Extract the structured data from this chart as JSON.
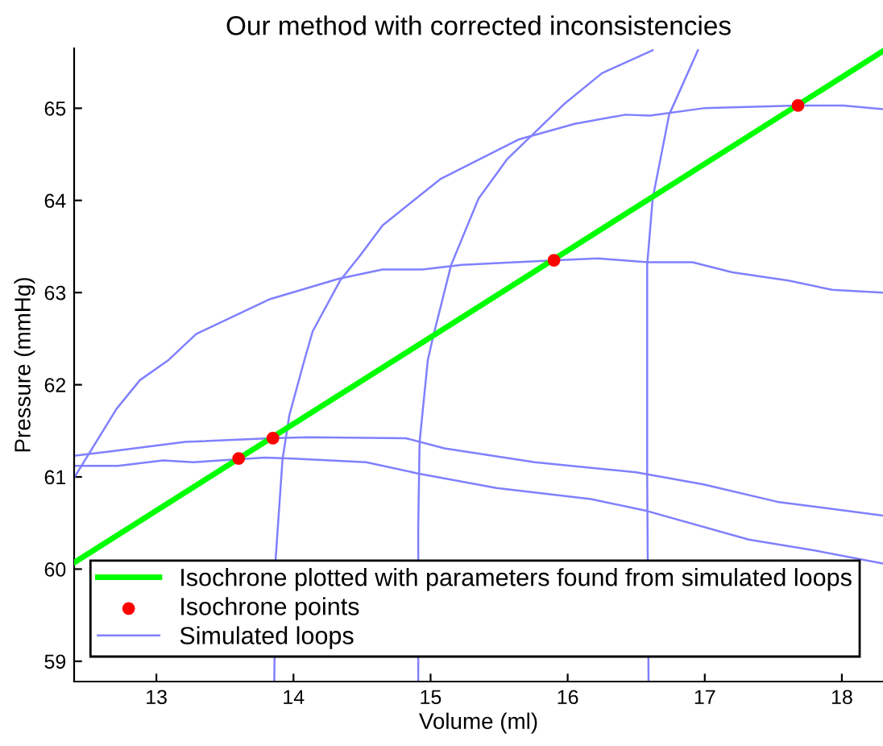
{
  "chart_data": {
    "type": "line",
    "title": "Our method with corrected inconsistencies",
    "xlabel": "Volume (ml)",
    "ylabel": "Pressure (mmHg)",
    "xlim": [
      12.4,
      18.3
    ],
    "ylim": [
      58.78,
      65.65
    ],
    "xticks": [
      13,
      14,
      15,
      16,
      17,
      18
    ],
    "yticks": [
      59,
      60,
      61,
      62,
      63,
      64,
      65
    ],
    "grid": false,
    "legend": "bottom",
    "series": [
      {
        "name": "Isochrone plotted with parameters found from simulated loops",
        "color": "#00ff00",
        "x": [
          12.4,
          18.3
        ],
        "values": [
          60.07,
          65.62
        ]
      },
      {
        "name": "Isochrone points",
        "type": "scatter",
        "color": "#ff0000",
        "marker": "circle",
        "x": [
          13.6,
          13.85,
          15.9,
          17.68
        ],
        "values": [
          61.2,
          61.42,
          63.35,
          65.03
        ]
      },
      {
        "name": "Simulated loops",
        "type": "line",
        "color": "#8080ff",
        "x": [
          12.4,
          12.71,
          12.88,
          13.09,
          13.29,
          13.83,
          14.33,
          14.65,
          14.94,
          15.23,
          15.89,
          16.22,
          16.58,
          16.91,
          17.2,
          17.61,
          17.93,
          18.3
        ],
        "values": [
          60.99,
          61.74,
          62.05,
          62.27,
          62.55,
          62.93,
          63.15,
          63.25,
          63.25,
          63.3,
          63.35,
          63.37,
          63.33,
          63.33,
          63.22,
          63.13,
          63.03,
          63.0
        ]
      },
      {
        "type": "line",
        "color": "#8080ff",
        "x": [
          13.86,
          13.87,
          13.92,
          13.97,
          14.08,
          14.14,
          14.34,
          14.49,
          14.65,
          15.07,
          15.64,
          16.05,
          16.42,
          16.6,
          16.99,
          17.67,
          18.01,
          18.3
        ],
        "values": [
          58.79,
          60.11,
          61.19,
          61.67,
          62.27,
          62.58,
          63.13,
          63.41,
          63.73,
          64.23,
          64.66,
          64.83,
          64.93,
          64.92,
          65.0,
          65.03,
          65.03,
          64.99
        ]
      },
      {
        "type": "line",
        "color": "#8080ff",
        "x": [
          14.91,
          14.91,
          14.92,
          14.98,
          15.02,
          15.15,
          15.35,
          15.56,
          15.97,
          16.25,
          16.62
        ],
        "values": [
          58.79,
          60.46,
          61.38,
          62.27,
          62.53,
          63.3,
          64.02,
          64.45,
          65.04,
          65.38,
          65.63
        ]
      },
      {
        "type": "line",
        "color": "#8080ff",
        "x": [
          16.59,
          16.58,
          16.58,
          16.62,
          16.74,
          16.95
        ],
        "values": [
          58.79,
          61.0,
          63.3,
          64.02,
          64.93,
          65.63
        ]
      },
      {
        "type": "line",
        "color": "#8080ff",
        "x": [
          12.4,
          12.68,
          13.21,
          13.83,
          14.11,
          14.82,
          15.1,
          15.76,
          16.5,
          16.99,
          17.53,
          18.3
        ],
        "values": [
          61.23,
          61.28,
          61.38,
          61.42,
          61.43,
          61.42,
          61.31,
          61.16,
          61.05,
          60.92,
          60.73,
          60.58
        ]
      },
      {
        "type": "line",
        "color": "#8080ff",
        "x": [
          12.4,
          12.72,
          13.05,
          13.27,
          13.79,
          14.0,
          14.53,
          14.9,
          15.48,
          16.17,
          16.58,
          17.32,
          17.81,
          18.3
        ],
        "values": [
          61.12,
          61.12,
          61.18,
          61.16,
          61.21,
          61.2,
          61.16,
          61.04,
          60.88,
          60.76,
          60.63,
          60.32,
          60.2,
          60.06
        ]
      }
    ]
  }
}
